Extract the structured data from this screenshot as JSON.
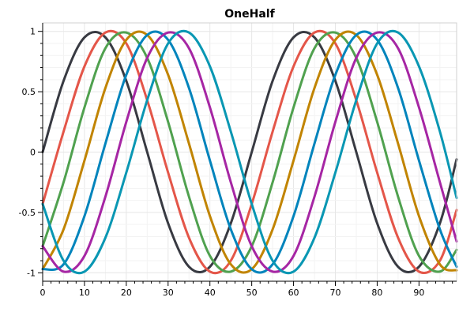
{
  "chart_data": {
    "type": "line",
    "title": "OneHalf",
    "xlabel": "",
    "ylabel": "",
    "xlim": [
      0,
      99
    ],
    "ylim": [
      -1.07,
      1.07
    ],
    "grid": true,
    "x_ticks": [
      0,
      10,
      20,
      30,
      40,
      50,
      60,
      70,
      80,
      90
    ],
    "x_tick_labels": [
      "0",
      "10",
      "20",
      "30",
      "40",
      "50",
      "60",
      "70",
      "80",
      "90"
    ],
    "y_ticks": [
      -1,
      -0.5,
      0,
      0.5,
      1
    ],
    "y_tick_labels": [
      "-1",
      "-0.5",
      "0",
      "0.5",
      "1"
    ],
    "x": [
      0,
      5,
      10,
      15,
      20,
      25,
      30,
      35,
      40,
      45,
      50,
      55,
      60,
      65,
      70,
      75,
      80,
      85,
      90,
      95,
      99
    ],
    "series": [
      {
        "color": "#383a42",
        "values": [
          0.0,
          0.59,
          0.95,
          0.95,
          0.59,
          0.0,
          -0.59,
          -0.95,
          -0.95,
          -0.59,
          0.0,
          0.59,
          0.95,
          0.95,
          0.59,
          0.0,
          -0.59,
          -0.95,
          -0.95,
          -0.59,
          -0.06
        ]
      },
      {
        "color": "#e45649",
        "values": [
          -0.43,
          0.17,
          0.71,
          0.99,
          0.9,
          0.43,
          -0.17,
          -0.71,
          -0.99,
          -0.9,
          -0.43,
          0.17,
          0.71,
          0.99,
          0.9,
          0.43,
          -0.17,
          -0.71,
          -0.99,
          -0.9,
          -0.48
        ]
      },
      {
        "color": "#50a14f",
        "values": [
          -0.78,
          -0.25,
          0.37,
          0.86,
          0.99,
          0.78,
          0.25,
          -0.37,
          -0.86,
          -0.99,
          -0.78,
          -0.25,
          0.37,
          0.86,
          0.99,
          0.78,
          0.25,
          -0.37,
          -0.86,
          -0.99,
          -0.81
        ]
      },
      {
        "color": "#c18401",
        "values": [
          -0.97,
          -0.64,
          -0.07,
          0.53,
          0.93,
          0.97,
          0.64,
          0.07,
          -0.53,
          -0.93,
          -0.97,
          -0.64,
          -0.07,
          0.53,
          0.93,
          0.97,
          0.64,
          0.07,
          -0.53,
          -0.93,
          -0.98
        ]
      },
      {
        "color": "#0184bc",
        "values": [
          -0.97,
          -0.93,
          -0.53,
          0.07,
          0.64,
          0.97,
          0.93,
          0.53,
          -0.07,
          -0.64,
          -0.97,
          -0.93,
          -0.53,
          0.07,
          0.64,
          0.97,
          0.93,
          0.53,
          -0.07,
          -0.64,
          -0.95
        ]
      },
      {
        "color": "#a626a4",
        "values": [
          -0.78,
          -0.99,
          -0.86,
          -0.37,
          0.25,
          0.78,
          0.99,
          0.86,
          0.37,
          -0.25,
          -0.78,
          -0.99,
          -0.86,
          -0.37,
          0.25,
          0.78,
          0.99,
          0.86,
          0.37,
          -0.25,
          -0.74
        ]
      },
      {
        "color": "#0997b3",
        "values": [
          -0.43,
          -0.9,
          -0.99,
          -0.71,
          -0.17,
          0.43,
          0.9,
          0.99,
          0.71,
          0.17,
          -0.43,
          -0.9,
          -0.99,
          -0.71,
          -0.17,
          0.43,
          0.9,
          0.99,
          0.71,
          0.17,
          -0.38
        ]
      }
    ]
  }
}
